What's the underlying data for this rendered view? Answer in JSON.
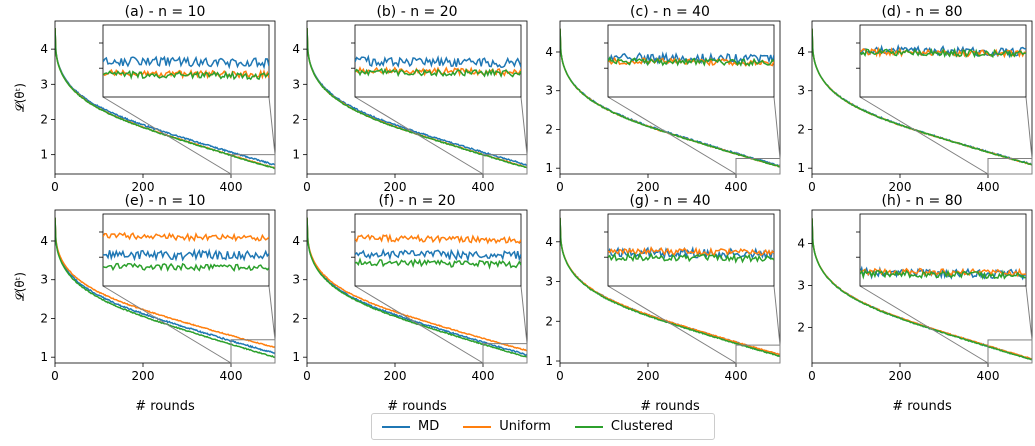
{
  "figure": {
    "ylabel": "𝓛(θᵗ)",
    "xlabel": "# rounds"
  },
  "legend": {
    "items": [
      {
        "label": "MD",
        "color": "#1f77b4"
      },
      {
        "label": "Uniform",
        "color": "#ff7f0e"
      },
      {
        "label": "Clustered",
        "color": "#2ca02c"
      }
    ]
  },
  "chart_data": [
    {
      "type": "line",
      "title": "(a) - n = 10",
      "xticks": [
        0,
        200,
        400
      ],
      "yticks": [
        1,
        2,
        3,
        4
      ],
      "xlim": [
        0,
        500
      ],
      "ylim": [
        0.45,
        4.8
      ],
      "series": [
        {
          "name": "MD",
          "start": 4.6,
          "end": 0.71,
          "color": "#1f77b4"
        },
        {
          "name": "Uniform",
          "start": 4.6,
          "end": 0.62,
          "color": "#ff7f0e"
        },
        {
          "name": "Clustered",
          "start": 4.6,
          "end": 0.61,
          "color": "#2ca02c"
        }
      ],
      "inset": {
        "xrange": [
          400,
          500
        ],
        "yrange": [
          0.45,
          1.0
        ]
      }
    },
    {
      "type": "line",
      "title": "(b) - n = 20",
      "xticks": [
        0,
        200,
        400
      ],
      "yticks": [
        1,
        2,
        3,
        4
      ],
      "xlim": [
        0,
        500
      ],
      "ylim": [
        0.45,
        4.8
      ],
      "series": [
        {
          "name": "MD",
          "start": 4.6,
          "end": 0.71,
          "color": "#1f77b4"
        },
        {
          "name": "Uniform",
          "start": 4.6,
          "end": 0.64,
          "color": "#ff7f0e"
        },
        {
          "name": "Clustered",
          "start": 4.6,
          "end": 0.63,
          "color": "#2ca02c"
        }
      ],
      "inset": {
        "xrange": [
          400,
          500
        ],
        "yrange": [
          0.45,
          1.0
        ]
      }
    },
    {
      "type": "line",
      "title": "(c) - n = 40",
      "xticks": [
        0,
        200,
        400
      ],
      "yticks": [
        1,
        2,
        3,
        4
      ],
      "xlim": [
        0,
        500
      ],
      "ylim": [
        0.85,
        4.8
      ],
      "series": [
        {
          "name": "MD",
          "start": 4.6,
          "end": 1.06,
          "color": "#1f77b4"
        },
        {
          "name": "Uniform",
          "start": 4.6,
          "end": 1.04,
          "color": "#ff7f0e"
        },
        {
          "name": "Clustered",
          "start": 4.6,
          "end": 1.04,
          "color": "#2ca02c"
        }
      ],
      "inset": {
        "xrange": [
          400,
          500
        ],
        "yrange": [
          0.85,
          1.25
        ]
      }
    },
    {
      "type": "line",
      "title": "(d) - n = 80",
      "xticks": [
        0,
        200,
        400
      ],
      "yticks": [
        1,
        2,
        3,
        4
      ],
      "xlim": [
        0,
        500
      ],
      "ylim": [
        0.85,
        4.8
      ],
      "series": [
        {
          "name": "MD",
          "start": 4.6,
          "end": 1.1,
          "color": "#1f77b4"
        },
        {
          "name": "Uniform",
          "start": 4.6,
          "end": 1.09,
          "color": "#ff7f0e"
        },
        {
          "name": "Clustered",
          "start": 4.6,
          "end": 1.09,
          "color": "#2ca02c"
        }
      ],
      "inset": {
        "xrange": [
          400,
          500
        ],
        "yrange": [
          0.85,
          1.25
        ]
      }
    },
    {
      "type": "line",
      "title": "(e) - n = 10",
      "xticks": [
        0,
        200,
        400
      ],
      "yticks": [
        1,
        2,
        3,
        4
      ],
      "xlim": [
        0,
        500
      ],
      "ylim": [
        0.85,
        4.8
      ],
      "series": [
        {
          "name": "MD",
          "start": 4.6,
          "end": 1.1,
          "color": "#1f77b4"
        },
        {
          "name": "Uniform",
          "start": 4.6,
          "end": 1.25,
          "color": "#ff7f0e"
        },
        {
          "name": "Clustered",
          "start": 4.6,
          "end": 1.0,
          "color": "#2ca02c"
        }
      ],
      "inset": {
        "xrange": [
          400,
          500
        ],
        "yrange": [
          0.85,
          1.45
        ]
      }
    },
    {
      "type": "line",
      "title": "(f) - n = 20",
      "xticks": [
        0,
        200,
        400
      ],
      "yticks": [
        1,
        2,
        3,
        4
      ],
      "xlim": [
        0,
        500
      ],
      "ylim": [
        0.85,
        4.8
      ],
      "series": [
        {
          "name": "MD",
          "start": 4.6,
          "end": 1.06,
          "color": "#1f77b4"
        },
        {
          "name": "Uniform",
          "start": 4.6,
          "end": 1.17,
          "color": "#ff7f0e"
        },
        {
          "name": "Clustered",
          "start": 4.6,
          "end": 1.0,
          "color": "#2ca02c"
        }
      ],
      "inset": {
        "xrange": [
          400,
          500
        ],
        "yrange": [
          0.85,
          1.35
        ]
      }
    },
    {
      "type": "line",
      "title": "(g) - n = 40",
      "xticks": [
        0,
        200,
        400
      ],
      "yticks": [
        1,
        2,
        3,
        4
      ],
      "xlim": [
        0,
        500
      ],
      "ylim": [
        0.95,
        4.8
      ],
      "series": [
        {
          "name": "MD",
          "start": 4.6,
          "end": 1.15,
          "color": "#1f77b4"
        },
        {
          "name": "Uniform",
          "start": 4.6,
          "end": 1.16,
          "color": "#ff7f0e"
        },
        {
          "name": "Clustered",
          "start": 4.6,
          "end": 1.12,
          "color": "#2ca02c"
        }
      ],
      "inset": {
        "xrange": [
          400,
          500
        ],
        "yrange": [
          0.95,
          1.4
        ]
      }
    },
    {
      "type": "line",
      "title": "(h) - n = 80",
      "xticks": [
        0,
        200,
        400
      ],
      "yticks": [
        2,
        3,
        4
      ],
      "xlim": [
        0,
        500
      ],
      "ylim": [
        1.15,
        4.8
      ],
      "series": [
        {
          "name": "MD",
          "start": 4.6,
          "end": 1.24,
          "color": "#1f77b4"
        },
        {
          "name": "Uniform",
          "start": 4.6,
          "end": 1.25,
          "color": "#ff7f0e"
        },
        {
          "name": "Clustered",
          "start": 4.6,
          "end": 1.23,
          "color": "#2ca02c"
        }
      ],
      "inset": {
        "xrange": [
          400,
          500
        ],
        "yrange": [
          1.15,
          1.7
        ]
      }
    }
  ]
}
